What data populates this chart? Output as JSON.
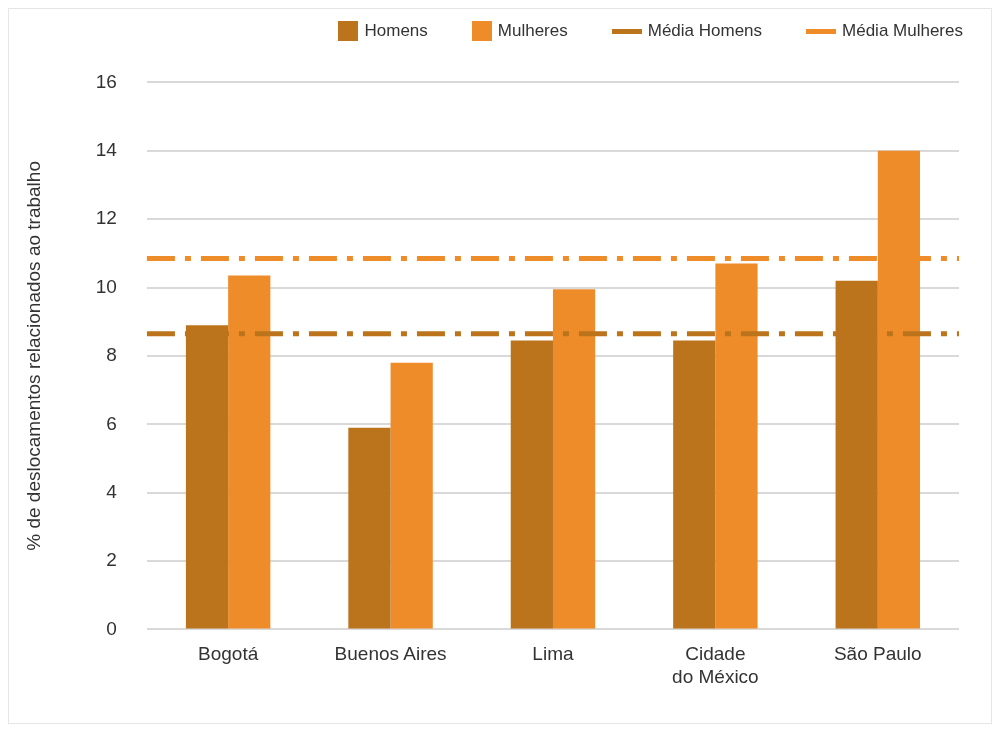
{
  "chart_data": {
    "type": "bar",
    "ylabel": "% de deslocamentos relacionados ao trabalho",
    "categories": [
      "Bogotá",
      "Buenos Aires",
      "Lima",
      "Cidade do México",
      "São Paulo"
    ],
    "series": [
      {
        "name": "Homens",
        "color": "#bb731c",
        "values": [
          8.9,
          5.9,
          8.45,
          8.45,
          10.2
        ]
      },
      {
        "name": "Mulheres",
        "color": "#ef8c2a",
        "values": [
          10.35,
          7.8,
          9.95,
          10.7,
          14.0
        ]
      }
    ],
    "ref_lines": [
      {
        "axis": "y",
        "value": 8.65,
        "label": "Média Homens",
        "color": "#bb731c",
        "line_style": "dashed"
      },
      {
        "axis": "y",
        "value": 10.85,
        "label": "Média Mulheres",
        "color": "#ef8c2a",
        "line_style": "dashed"
      }
    ],
    "ylim": [
      0,
      16
    ],
    "yticks": [
      0,
      2,
      4,
      6,
      8,
      10,
      12,
      14,
      16
    ],
    "grid": "y",
    "legend": "top right"
  }
}
